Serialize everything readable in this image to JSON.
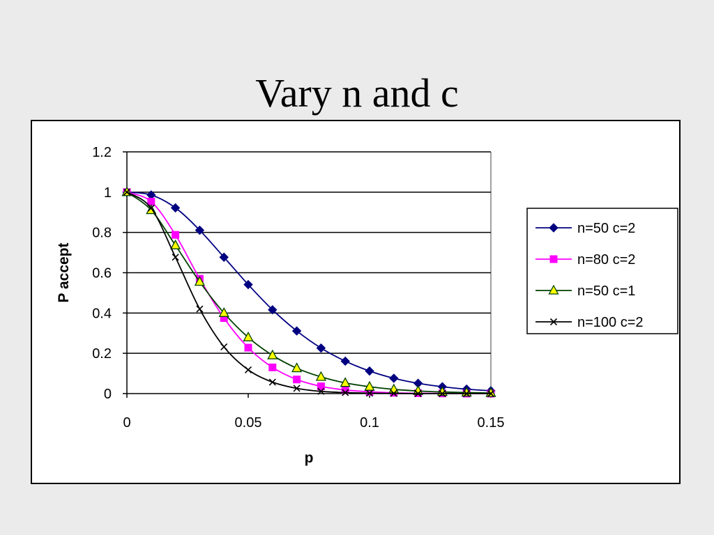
{
  "slide": {
    "title": "Vary n and c"
  },
  "chart_data": {
    "type": "line",
    "title": "",
    "xlabel": "p",
    "ylabel": "P accept",
    "xlim": [
      0,
      0.15
    ],
    "ylim": [
      0,
      1.2
    ],
    "x_ticks": [
      "0",
      "0.05",
      "0.1",
      "0.15"
    ],
    "y_ticks": [
      "0",
      "0.2",
      "0.4",
      "0.6",
      "0.8",
      "1",
      "1.2"
    ],
    "x_tick_values": [
      0,
      0.05,
      0.1,
      0.15
    ],
    "y_tick_values": [
      0,
      0.2,
      0.4,
      0.6,
      0.8,
      1.0,
      1.2
    ],
    "grid": "horizontal",
    "legend_position": "right",
    "x": [
      0,
      0.01,
      0.02,
      0.03,
      0.04,
      0.05,
      0.06,
      0.07,
      0.08,
      0.09,
      0.1,
      0.11,
      0.12,
      0.13,
      0.14,
      0.15
    ],
    "series": [
      {
        "name": "n=50 c=2",
        "color": "#000080",
        "marker": "diamond",
        "values": [
          1.0,
          0.986,
          0.922,
          0.811,
          0.677,
          0.541,
          0.416,
          0.311,
          0.226,
          0.161,
          0.112,
          0.076,
          0.051,
          0.034,
          0.022,
          0.014
        ]
      },
      {
        "name": "n=80 c=2",
        "color": "#ff00ff",
        "marker": "square",
        "values": [
          1.0,
          0.953,
          0.788,
          0.57,
          0.375,
          0.228,
          0.13,
          0.07,
          0.036,
          0.018,
          0.009,
          0.004,
          0.002,
          0.001,
          0.0,
          0.0
        ]
      },
      {
        "name": "n=50 c=1",
        "color": "#004000",
        "marker": "triangle",
        "values": [
          1.0,
          0.911,
          0.736,
          0.555,
          0.4,
          0.279,
          0.19,
          0.126,
          0.083,
          0.053,
          0.034,
          0.021,
          0.013,
          0.008,
          0.005,
          0.003
        ]
      },
      {
        "name": "n=100 c=2",
        "color": "#000000",
        "marker": "x",
        "values": [
          1.0,
          0.921,
          0.677,
          0.42,
          0.232,
          0.118,
          0.057,
          0.026,
          0.011,
          0.005,
          0.002,
          0.001,
          0.0,
          0.0,
          0.0,
          0.0
        ]
      }
    ]
  }
}
